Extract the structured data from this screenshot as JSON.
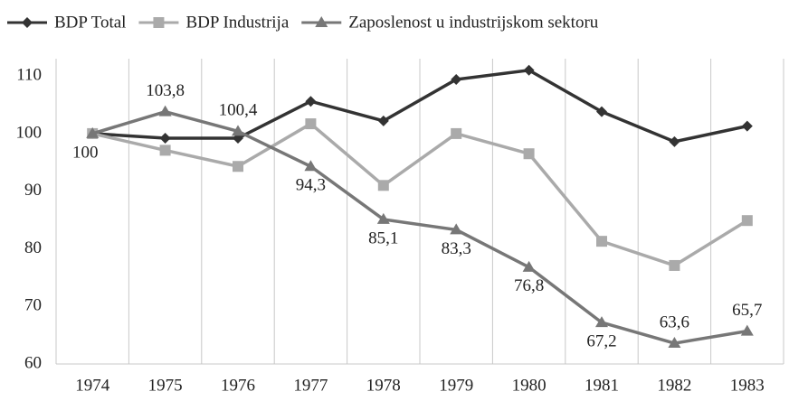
{
  "chart_data": {
    "type": "line",
    "categories": [
      "1974",
      "1975",
      "1976",
      "1977",
      "1978",
      "1979",
      "1980",
      "1981",
      "1982",
      "1983"
    ],
    "series": [
      {
        "name": "BDP Total",
        "color": "#333333",
        "marker": "diamond",
        "values": [
          100,
          99.2,
          99.2,
          105.6,
          102.2,
          109.4,
          111,
          103.8,
          98.6,
          101.3
        ]
      },
      {
        "name": "BDP Industrija",
        "color": "#aaaaaa",
        "marker": "square",
        "values": [
          100,
          97.1,
          94.3,
          101.7,
          91,
          100,
          96.5,
          81.3,
          77.1,
          84.9
        ]
      },
      {
        "name": "Zaposlenost u industrijskom sektoru",
        "color": "#777777",
        "marker": "triangle",
        "values": [
          100,
          103.8,
          100.4,
          94.3,
          85.1,
          83.3,
          76.8,
          67.2,
          63.6,
          65.7
        ],
        "value_labels": [
          "100",
          "103,8",
          "100,4",
          "94,3",
          "85,1",
          "83,3",
          "76,8",
          "67,2",
          "63,6",
          "65,7"
        ]
      }
    ],
    "ylim": [
      60,
      113
    ],
    "yticks": [
      60,
      70,
      80,
      90,
      100,
      110
    ],
    "grid": "x",
    "legend": "top"
  }
}
